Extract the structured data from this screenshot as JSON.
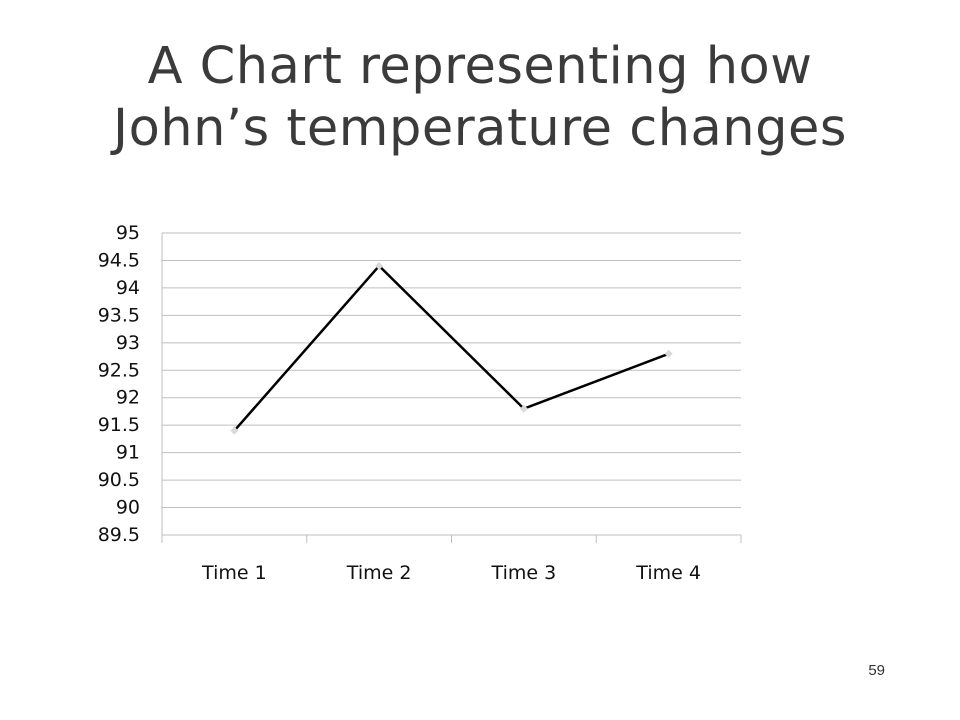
{
  "slide": {
    "title_line1": "A Chart representing how",
    "title_line2": "John’s temperature changes",
    "page_number": "59"
  },
  "chart_data": {
    "type": "line",
    "categories": [
      "Time 1",
      "Time 2",
      "Time 3",
      "Time 4"
    ],
    "series": [
      {
        "values": [
          91.4,
          94.4,
          91.8,
          92.8
        ]
      }
    ],
    "ylim": [
      89.5,
      95
    ],
    "yticks": [
      "95",
      "94.5",
      "94",
      "93.5",
      "93",
      "92.5",
      "92",
      "91.5",
      "91",
      "90.5",
      "90",
      "89.5"
    ],
    "grid": true,
    "legend": "none",
    "colors": {
      "line": "#000000",
      "marker": "#d9d9d9",
      "grid": "#bfbfbf"
    }
  }
}
